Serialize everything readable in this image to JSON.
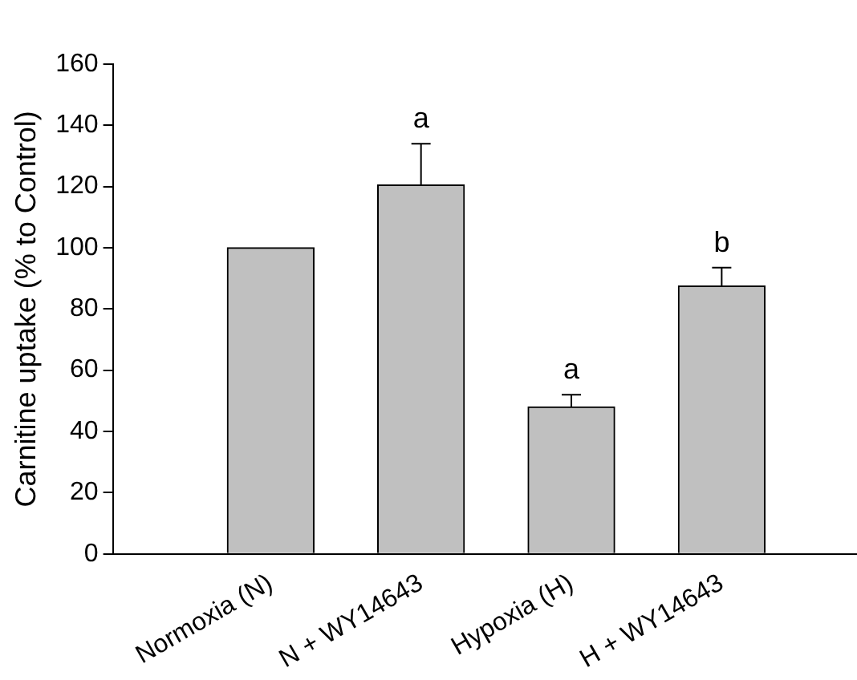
{
  "chart_data": {
    "type": "bar",
    "ylabel": "Carnitine uptake (% to Control)",
    "categories": [
      "Normoxia (N)",
      "N + WY14643",
      "Hypoxia (H)",
      "H + WY14643"
    ],
    "values": [
      100,
      120.5,
      48,
      87.5
    ],
    "errors": [
      null,
      [
        120.5,
        134
      ],
      [
        48,
        52
      ],
      [
        87.5,
        93.5
      ]
    ],
    "color": "#c0c0c0",
    "ylim": [
      0,
      160
    ],
    "yticks": [
      0,
      20,
      40,
      60,
      80,
      100,
      120,
      140,
      160
    ],
    "grid": false,
    "legend": false,
    "annotations": [
      {
        "text": "a",
        "x": "N + WY14643",
        "y": 134
      },
      {
        "text": "a",
        "x": "Hypoxia (H)",
        "y": 52
      },
      {
        "text": "b",
        "x": "H + WY14643",
        "y": 93.5
      }
    ]
  }
}
